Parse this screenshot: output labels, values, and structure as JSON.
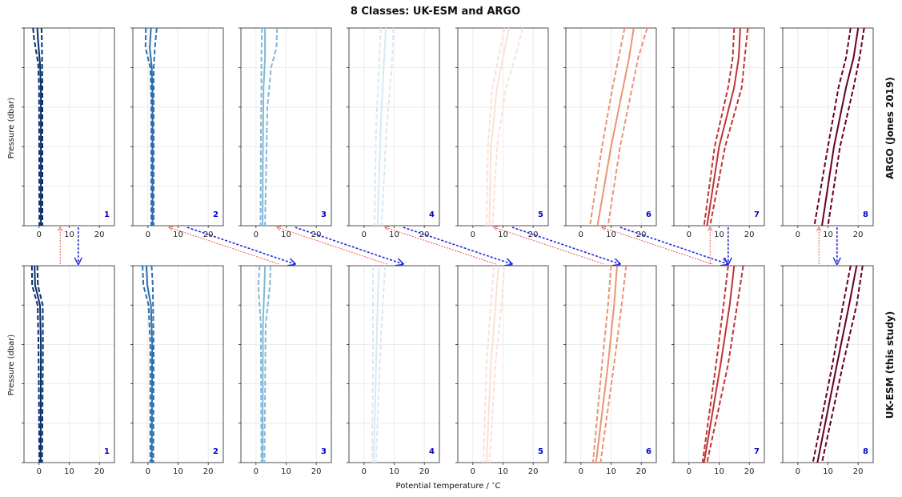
{
  "figure": {
    "title": "8 Classes: UK-ESM and ARGO",
    "xlabel": "Potential temperature / $^\\circ$C",
    "row_labels": [
      "ARGO (Jones 2019)",
      "UK-ESM (this study)"
    ],
    "ylabel": "Pressure (dbar)",
    "xticks": [
      "0",
      "10",
      "20"
    ]
  },
  "colors": {
    "classes": [
      "#08306b",
      "#2c6fad",
      "#80b8d8",
      "#d8e8f2",
      "#fbe1d5",
      "#ea9476",
      "#c03535",
      "#67001f"
    ],
    "class_label": "#0000cc",
    "arrow_up": "#e8473c",
    "arrow_down": "#1f2be0"
  },
  "chart_data": {
    "type": "line",
    "description_units": {
      "x": "Potential temperature (°C)",
      "y": "Pressure (dbar, inverted)"
    },
    "xlim": [
      -5,
      25
    ],
    "grid": true,
    "panels": {
      "argo": [
        {
          "class": "1",
          "mean": [
            [
              -0.6,
              0
            ],
            [
              -0.4,
              0.05
            ],
            [
              0.3,
              0.18
            ],
            [
              0.6,
              0.3
            ],
            [
              0.6,
              1
            ]
          ],
          "lower": [
            [
              -2.0,
              0
            ],
            [
              -1.7,
              0.05
            ],
            [
              -0.3,
              0.18
            ],
            [
              0.0,
              0.3
            ],
            [
              0.1,
              1
            ]
          ],
          "upper": [
            [
              0.8,
              0
            ],
            [
              0.9,
              0.05
            ],
            [
              1.0,
              0.18
            ],
            [
              1.1,
              0.3
            ],
            [
              1.1,
              1
            ]
          ]
        },
        {
          "class": "2",
          "mean": [
            [
              1,
              0
            ],
            [
              0.6,
              0.1
            ],
            [
              1.3,
              0.2
            ],
            [
              1.5,
              0.35
            ],
            [
              1.5,
              1
            ]
          ],
          "lower": [
            [
              -0.7,
              0
            ],
            [
              -0.8,
              0.1
            ],
            [
              0.8,
              0.2
            ],
            [
              1.1,
              0.35
            ],
            [
              1.1,
              1
            ]
          ],
          "upper": [
            [
              2.9,
              0
            ],
            [
              2.3,
              0.1
            ],
            [
              1.9,
              0.2
            ],
            [
              1.9,
              0.35
            ],
            [
              1.9,
              1
            ]
          ]
        },
        {
          "class": "3",
          "mean": [
            [
              3,
              0
            ],
            [
              3,
              0.15
            ],
            [
              2.5,
              0.3
            ],
            [
              2.3,
              0.6
            ],
            [
              2.2,
              1
            ]
          ],
          "lower": [
            [
              2,
              0
            ],
            [
              1.8,
              0.15
            ],
            [
              1.8,
              0.3
            ],
            [
              1.6,
              0.6
            ],
            [
              1.5,
              1
            ]
          ],
          "upper": [
            [
              7,
              0
            ],
            [
              6.8,
              0.1
            ],
            [
              5,
              0.2
            ],
            [
              3.8,
              0.4
            ],
            [
              3,
              1
            ]
          ]
        },
        {
          "class": "4",
          "mean": [
            [
              7.2,
              0
            ],
            [
              6.5,
              0.2
            ],
            [
              5.5,
              0.5
            ],
            [
              4.5,
              1
            ]
          ],
          "lower": [
            [
              5.5,
              0
            ],
            [
              5,
              0.2
            ],
            [
              4,
              0.5
            ],
            [
              3.5,
              1
            ]
          ],
          "upper": [
            [
              9.8,
              0
            ],
            [
              9.2,
              0.2
            ],
            [
              7.5,
              0.5
            ],
            [
              5.8,
              1
            ]
          ]
        },
        {
          "class": "5",
          "mean": [
            [
              12,
              0
            ],
            [
              10,
              0.15
            ],
            [
              8,
              0.3
            ],
            [
              6,
              0.6
            ],
            [
              5.5,
              1
            ]
          ],
          "lower": [
            [
              10.5,
              0
            ],
            [
              8.5,
              0.15
            ],
            [
              6.5,
              0.3
            ],
            [
              5,
              0.6
            ],
            [
              4.5,
              1
            ]
          ],
          "upper": [
            [
              16.5,
              0
            ],
            [
              14,
              0.15
            ],
            [
              11,
              0.3
            ],
            [
              8,
              0.6
            ],
            [
              6.5,
              1
            ]
          ]
        },
        {
          "class": "6",
          "mean": [
            [
              17.5,
              0
            ],
            [
              16,
              0.15
            ],
            [
              14,
              0.3
            ],
            [
              10,
              0.6
            ],
            [
              5.5,
              1
            ]
          ],
          "lower": [
            [
              14.5,
              0
            ],
            [
              12.5,
              0.15
            ],
            [
              10.5,
              0.3
            ],
            [
              7,
              0.6
            ],
            [
              3,
              1
            ]
          ],
          "upper": [
            [
              22,
              0
            ],
            [
              19,
              0.15
            ],
            [
              17,
              0.3
            ],
            [
              13,
              0.6
            ],
            [
              9,
              1
            ]
          ]
        },
        {
          "class": "7",
          "mean": [
            [
              17,
              0
            ],
            [
              16.5,
              0.15
            ],
            [
              15,
              0.3
            ],
            [
              10,
              0.6
            ],
            [
              6,
              1
            ]
          ],
          "lower": [
            [
              15,
              0
            ],
            [
              14.5,
              0.15
            ],
            [
              13,
              0.3
            ],
            [
              8.5,
              0.6
            ],
            [
              5,
              1
            ]
          ],
          "upper": [
            [
              19.5,
              0
            ],
            [
              18.5,
              0.15
            ],
            [
              17.5,
              0.3
            ],
            [
              12,
              0.6
            ],
            [
              7,
              1
            ]
          ]
        },
        {
          "class": "8",
          "mean": [
            [
              20,
              0
            ],
            [
              18.5,
              0.15
            ],
            [
              16,
              0.3
            ],
            [
              12,
              0.6
            ],
            [
              8,
              1
            ]
          ],
          "lower": [
            [
              17.5,
              0
            ],
            [
              16,
              0.15
            ],
            [
              13.5,
              0.3
            ],
            [
              10,
              0.6
            ],
            [
              5.5,
              1
            ]
          ],
          "upper": [
            [
              22,
              0
            ],
            [
              20.5,
              0.15
            ],
            [
              18.5,
              0.3
            ],
            [
              14,
              0.6
            ],
            [
              10,
              1
            ]
          ]
        }
      ],
      "ukesm": [
        {
          "class": "1",
          "mean": [
            [
              -1.5,
              0
            ],
            [
              -1.3,
              0.1
            ],
            [
              0.3,
              0.2
            ],
            [
              0.6,
              0.4
            ],
            [
              0.5,
              1
            ]
          ],
          "lower": [
            [
              -2.4,
              0
            ],
            [
              -2.3,
              0.1
            ],
            [
              -0.5,
              0.2
            ],
            [
              -0.2,
              0.4
            ],
            [
              0.1,
              1
            ]
          ],
          "upper": [
            [
              -0.6,
              0
            ],
            [
              -0.4,
              0.1
            ],
            [
              1.2,
              0.2
            ],
            [
              1.3,
              0.4
            ],
            [
              1,
              1
            ]
          ]
        },
        {
          "class": "2",
          "mean": [
            [
              -0.5,
              0
            ],
            [
              -0.2,
              0.1
            ],
            [
              1,
              0.2
            ],
            [
              1.4,
              0.4
            ],
            [
              1.3,
              1
            ]
          ],
          "lower": [
            [
              -1.8,
              0
            ],
            [
              -1.5,
              0.1
            ],
            [
              0.2,
              0.2
            ],
            [
              0.8,
              0.4
            ],
            [
              0.8,
              1
            ]
          ],
          "upper": [
            [
              1.2,
              0
            ],
            [
              1.6,
              0.1
            ],
            [
              1.7,
              0.2
            ],
            [
              1.9,
              0.4
            ],
            [
              1.8,
              1
            ]
          ]
        },
        {
          "class": "3",
          "mean": [
            [
              3,
              0
            ],
            [
              2.8,
              0.1
            ],
            [
              2.3,
              0.3
            ],
            [
              2.2,
              1
            ]
          ],
          "lower": [
            [
              1.2,
              0
            ],
            [
              0.8,
              0.1
            ],
            [
              1.6,
              0.3
            ],
            [
              1.8,
              1
            ]
          ],
          "upper": [
            [
              4.8,
              0
            ],
            [
              4.6,
              0.1
            ],
            [
              3.2,
              0.3
            ],
            [
              2.8,
              1
            ]
          ]
        },
        {
          "class": "4",
          "mean": [
            [
              5,
              0
            ],
            [
              4.5,
              0.2
            ],
            [
              4,
              0.5
            ],
            [
              3.2,
              1
            ]
          ],
          "lower": [
            [
              3,
              0
            ],
            [
              3,
              0.2
            ],
            [
              3,
              0.5
            ],
            [
              2.6,
              1
            ]
          ],
          "upper": [
            [
              7,
              0
            ],
            [
              6.2,
              0.2
            ],
            [
              5.2,
              0.5
            ],
            [
              4,
              1
            ]
          ]
        },
        {
          "class": "5",
          "mean": [
            [
              8.5,
              0
            ],
            [
              7.5,
              0.2
            ],
            [
              6,
              0.5
            ],
            [
              4.5,
              1
            ]
          ],
          "lower": [
            [
              7,
              0
            ],
            [
              6,
              0.2
            ],
            [
              4.5,
              0.5
            ],
            [
              3.5,
              1
            ]
          ],
          "upper": [
            [
              10.5,
              0
            ],
            [
              9.5,
              0.2
            ],
            [
              7.5,
              0.5
            ],
            [
              5.5,
              1
            ]
          ]
        },
        {
          "class": "6",
          "mean": [
            [
              12,
              0
            ],
            [
              11,
              0.2
            ],
            [
              9,
              0.5
            ],
            [
              5,
              1
            ]
          ],
          "lower": [
            [
              10,
              0
            ],
            [
              9,
              0.2
            ],
            [
              7,
              0.5
            ],
            [
              4,
              1
            ]
          ],
          "upper": [
            [
              15,
              0
            ],
            [
              13.5,
              0.2
            ],
            [
              11,
              0.5
            ],
            [
              6.5,
              1
            ]
          ]
        },
        {
          "class": "7",
          "mean": [
            [
              15,
              0
            ],
            [
              13.5,
              0.2
            ],
            [
              10.5,
              0.5
            ],
            [
              5,
              1
            ]
          ],
          "lower": [
            [
              13,
              0
            ],
            [
              11.5,
              0.2
            ],
            [
              9,
              0.5
            ],
            [
              4.5,
              1
            ]
          ],
          "upper": [
            [
              18,
              0
            ],
            [
              16,
              0.2
            ],
            [
              13,
              0.5
            ],
            [
              6,
              1
            ]
          ]
        },
        {
          "class": "8",
          "mean": [
            [
              19.5,
              0
            ],
            [
              17,
              0.2
            ],
            [
              13,
              0.5
            ],
            [
              6.5,
              1
            ]
          ],
          "lower": [
            [
              17.5,
              0
            ],
            [
              15,
              0.2
            ],
            [
              11.5,
              0.5
            ],
            [
              5,
              1
            ]
          ],
          "upper": [
            [
              21.5,
              0
            ],
            [
              19.5,
              0.2
            ],
            [
              15,
              0.5
            ],
            [
              8,
              1
            ]
          ]
        }
      ]
    },
    "arrows_up": [
      {
        "to_column": 1,
        "x_deg": 7
      },
      {
        "from_column": 1,
        "to_column": 2,
        "x_deg": 7
      },
      {
        "from_column": 2,
        "to_column": 3,
        "x_deg": 7
      },
      {
        "from_column": 3,
        "to_column": 4,
        "x_deg": 7
      },
      {
        "from_column": 4,
        "to_column": 5,
        "x_deg": 7
      },
      {
        "from_column": 5,
        "to_column": 6,
        "x_deg": 7
      },
      {
        "to_column": 7,
        "x_deg": 7
      },
      {
        "to_column": 8,
        "x_deg": 7
      }
    ],
    "arrows_down": [
      {
        "from_column": 1,
        "to_column": 1,
        "x_deg": 13
      },
      {
        "from_column": 2,
        "to_column": 3,
        "x_deg": 13
      },
      {
        "from_column": 3,
        "to_column": 4,
        "x_deg": 13
      },
      {
        "from_column": 4,
        "to_column": 5,
        "x_deg": 13
      },
      {
        "from_column": 5,
        "to_column": 6,
        "x_deg": 13
      },
      {
        "from_column": 6,
        "to_column": 7,
        "x_deg": 13
      },
      {
        "from_column": 7,
        "to_column": 7,
        "x_deg": 13
      },
      {
        "from_column": 8,
        "to_column": 8,
        "x_deg": 13
      }
    ]
  }
}
